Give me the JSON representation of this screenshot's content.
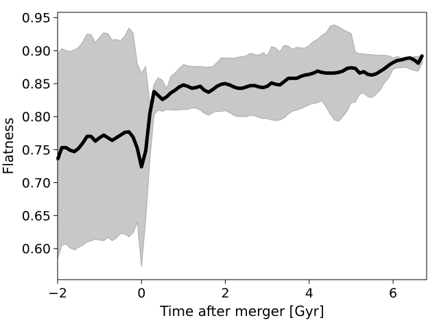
{
  "chart_data": {
    "type": "line",
    "title": "",
    "xlabel": "Time after merger [Gyr]",
    "ylabel": "Flatness",
    "xlim": [
      -2.0,
      6.8
    ],
    "ylim": [
      0.553,
      0.958
    ],
    "xticks": [
      -2,
      0,
      2,
      4,
      6
    ],
    "xtick_labels": [
      "−2",
      "0",
      "2",
      "4",
      "6"
    ],
    "yticks": [
      0.6,
      0.65,
      0.7,
      0.75,
      0.8,
      0.85,
      0.9,
      0.95
    ],
    "ytick_labels": [
      "0.60",
      "0.65",
      "0.70",
      "0.75",
      "0.80",
      "0.85",
      "0.90",
      "0.95"
    ],
    "grid": false,
    "line_color": "#000000",
    "band_color": "#c8c8c8",
    "series": [
      {
        "x": [
          -2.0,
          -1.9,
          -1.8,
          -1.7,
          -1.6,
          -1.5,
          -1.4,
          -1.3,
          -1.2,
          -1.1,
          -1.0,
          -0.9,
          -0.8,
          -0.7,
          -0.6,
          -0.5,
          -0.4,
          -0.3,
          -0.2,
          -0.1,
          0.0,
          0.1,
          0.2,
          0.3,
          0.4,
          0.5,
          0.6,
          0.7,
          0.8,
          0.9,
          1.0,
          1.1,
          1.2,
          1.3,
          1.4,
          1.5,
          1.6,
          1.7,
          1.8,
          1.9,
          2.0,
          2.1,
          2.2,
          2.3,
          2.4,
          2.5,
          2.6,
          2.7,
          2.8,
          2.9,
          3.0,
          3.1,
          3.2,
          3.3,
          3.4,
          3.5,
          3.6,
          3.7,
          3.8,
          3.9,
          4.0,
          4.1,
          4.2,
          4.3,
          4.4,
          4.5,
          4.6,
          4.7,
          4.8,
          4.9,
          5.0,
          5.1,
          5.2,
          5.3,
          5.4,
          5.5,
          5.6,
          5.7,
          5.8,
          5.9,
          6.0,
          6.1,
          6.2,
          6.3,
          6.4,
          6.5,
          6.6,
          6.7
        ],
        "y": [
          0.735,
          0.753,
          0.753,
          0.749,
          0.747,
          0.752,
          0.76,
          0.77,
          0.77,
          0.763,
          0.768,
          0.772,
          0.768,
          0.764,
          0.768,
          0.772,
          0.776,
          0.777,
          0.769,
          0.752,
          0.724,
          0.748,
          0.805,
          0.838,
          0.832,
          0.826,
          0.83,
          0.836,
          0.84,
          0.845,
          0.848,
          0.846,
          0.843,
          0.844,
          0.846,
          0.84,
          0.837,
          0.841,
          0.846,
          0.849,
          0.85,
          0.848,
          0.845,
          0.843,
          0.843,
          0.845,
          0.847,
          0.847,
          0.845,
          0.844,
          0.846,
          0.851,
          0.849,
          0.848,
          0.853,
          0.858,
          0.858,
          0.858,
          0.861,
          0.863,
          0.864,
          0.866,
          0.869,
          0.867,
          0.866,
          0.866,
          0.866,
          0.867,
          0.869,
          0.873,
          0.874,
          0.873,
          0.866,
          0.868,
          0.864,
          0.863,
          0.865,
          0.869,
          0.873,
          0.878,
          0.882,
          0.885,
          0.886,
          0.888,
          0.889,
          0.886,
          0.881,
          0.893
        ],
        "upper": [
          0.895,
          0.903,
          0.9,
          0.899,
          0.901,
          0.905,
          0.913,
          0.925,
          0.924,
          0.912,
          0.92,
          0.927,
          0.926,
          0.916,
          0.917,
          0.915,
          0.922,
          0.934,
          0.927,
          0.88,
          0.866,
          0.876,
          0.82,
          0.849,
          0.859,
          0.855,
          0.842,
          0.861,
          0.866,
          0.873,
          0.879,
          0.877,
          0.876,
          0.876,
          0.876,
          0.875,
          0.875,
          0.876,
          0.882,
          0.889,
          0.889,
          0.889,
          0.888,
          0.89,
          0.891,
          0.892,
          0.896,
          0.894,
          0.893,
          0.897,
          0.892,
          0.906,
          0.904,
          0.898,
          0.908,
          0.907,
          0.902,
          0.905,
          0.904,
          0.904,
          0.908,
          0.914,
          0.917,
          0.923,
          0.927,
          0.937,
          0.939,
          0.936,
          0.932,
          0.929,
          0.926,
          0.898,
          0.895,
          0.895,
          0.894,
          0.894,
          0.893,
          0.893,
          0.893,
          0.892,
          0.889,
          0.891,
          0.889,
          0.888,
          0.888,
          0.891,
          0.891,
          0.894
        ],
        "lower": [
          0.585,
          0.605,
          0.607,
          0.601,
          0.598,
          0.602,
          0.605,
          0.61,
          0.612,
          0.614,
          0.613,
          0.612,
          0.617,
          0.612,
          0.616,
          0.623,
          0.622,
          0.618,
          0.624,
          0.64,
          0.573,
          0.642,
          0.735,
          0.803,
          0.81,
          0.808,
          0.811,
          0.81,
          0.81,
          0.81,
          0.811,
          0.811,
          0.813,
          0.813,
          0.81,
          0.805,
          0.802,
          0.806,
          0.808,
          0.808,
          0.809,
          0.806,
          0.802,
          0.8,
          0.8,
          0.8,
          0.802,
          0.801,
          0.799,
          0.797,
          0.797,
          0.795,
          0.794,
          0.795,
          0.798,
          0.804,
          0.808,
          0.81,
          0.812,
          0.815,
          0.818,
          0.82,
          0.821,
          0.824,
          0.815,
          0.804,
          0.795,
          0.793,
          0.8,
          0.808,
          0.821,
          0.822,
          0.834,
          0.836,
          0.83,
          0.829,
          0.834,
          0.841,
          0.852,
          0.859,
          0.872,
          0.874,
          0.874,
          0.875,
          0.872,
          0.87,
          0.869,
          0.882
        ]
      }
    ]
  }
}
